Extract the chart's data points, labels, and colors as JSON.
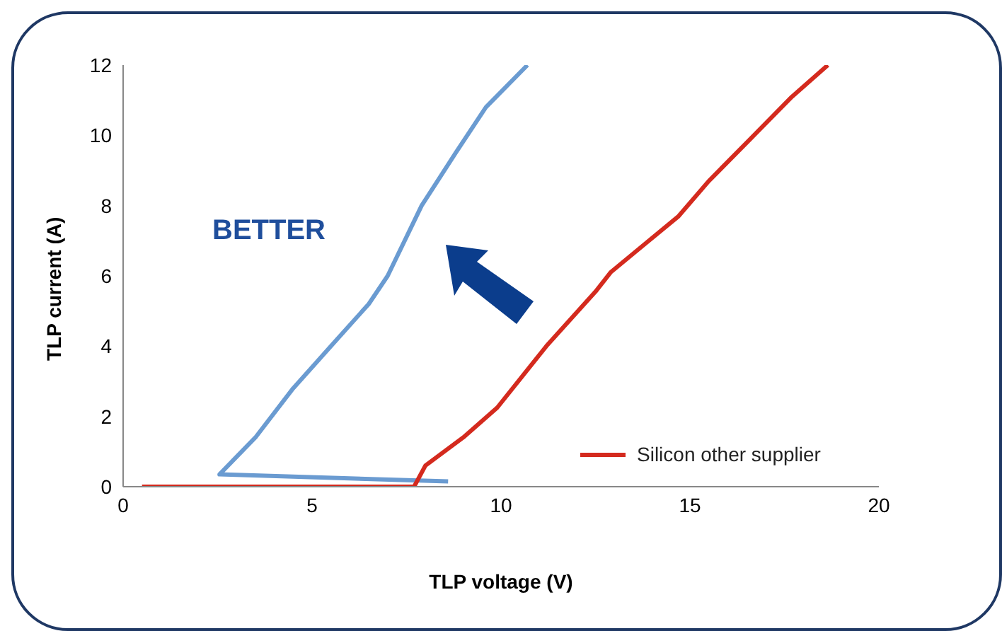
{
  "chart_data": {
    "type": "line",
    "xlabel": "TLP voltage (V)",
    "ylabel": "TLP current (A)",
    "annotations": [
      "BETTER"
    ],
    "xlim": [
      0,
      20
    ],
    "xticks": [
      0,
      5,
      10,
      15,
      20
    ],
    "ylim": [
      0,
      12
    ],
    "yticks": [
      0,
      2,
      4,
      6,
      8,
      10,
      12
    ],
    "grid": false,
    "legend": "bottom right",
    "marker": "none",
    "line_style": "solid",
    "series": [
      {
        "color": "#6a9bd1",
        "x": [
          8.6,
          2.55,
          3.5,
          4.5,
          5.5,
          6.5,
          7.0,
          7.9,
          8.8,
          9.6,
          10.7
        ],
        "values": [
          0.15,
          0.35,
          1.4,
          2.8,
          4.0,
          5.2,
          6.0,
          8.0,
          9.5,
          10.8,
          12
        ]
      },
      {
        "name": "Silicon other supplier",
        "color": "#d42a1e",
        "x": [
          0.5,
          3,
          6,
          7.7,
          8.0,
          9.0,
          9.9,
          11.2,
          12.5,
          12.9,
          13.8,
          14.7,
          15.5,
          16.6,
          17.7,
          18.65
        ],
        "values": [
          0,
          0,
          0,
          0,
          0.6,
          1.4,
          2.25,
          4,
          5.55,
          6.1,
          6.9,
          7.7,
          8.7,
          9.9,
          11.1,
          12
        ]
      }
    ]
  }
}
